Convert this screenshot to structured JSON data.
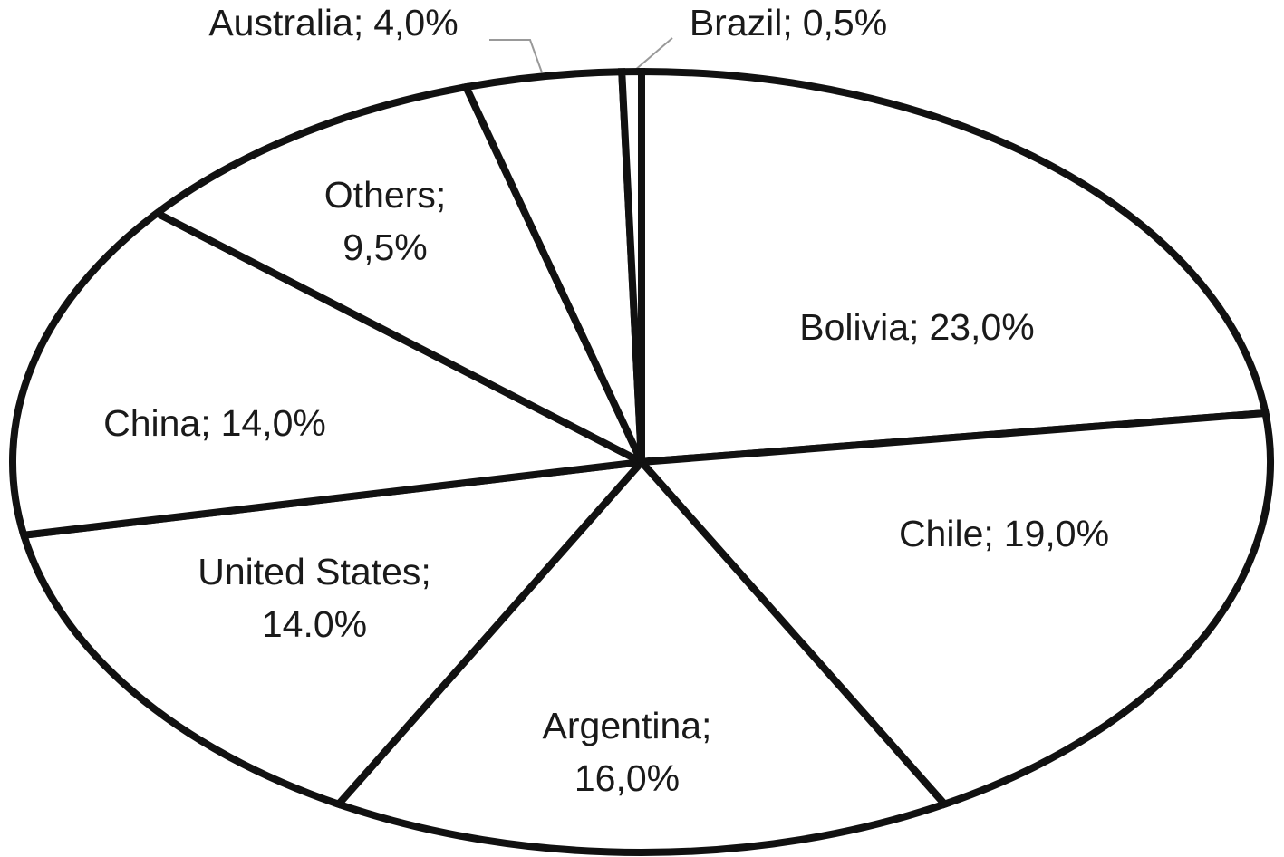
{
  "chart_data": {
    "type": "pie",
    "categories": [
      "Bolivia;",
      "Chile;",
      "Argentina;",
      "United States;",
      "China;",
      "Others;",
      "Australia;",
      "Brazil;"
    ],
    "values": [
      23,
      19,
      16,
      14,
      14,
      9.5,
      4,
      0.5
    ],
    "value_labels": [
      "23,0%",
      "19,0%",
      "16,0%",
      "14.0%",
      "14,0%",
      "9,5%",
      "4,0%",
      "0,5%"
    ],
    "color": "#ffffff"
  }
}
